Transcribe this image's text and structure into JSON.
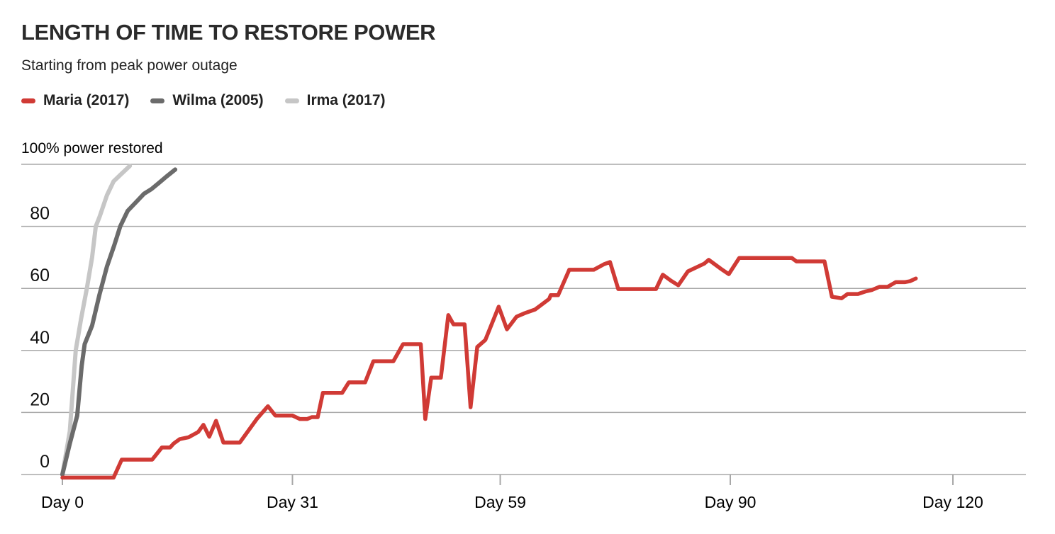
{
  "header": {
    "title": "LENGTH OF TIME TO RESTORE POWER",
    "subtitle": "Starting from peak power outage"
  },
  "legend": [
    {
      "label": "Maria (2017)",
      "color": "#d03a35"
    },
    {
      "label": "Wilma (2005)",
      "color": "#6b6b6b"
    },
    {
      "label": "Irma (2017)",
      "color": "#c6c6c6"
    }
  ],
  "colors": {
    "maria_red": "#d03a35",
    "wilma_dark_gray": "#6b6b6b",
    "irma_light_gray": "#c6c6c6",
    "gridline_gray": "#a8a8a8",
    "text_dark": "#111111"
  },
  "chart_data": {
    "type": "line",
    "title": "LENGTH OF TIME TO RESTORE POWER",
    "subtitle": "Starting from peak power outage",
    "y_top_label": "100% power restored",
    "y_top_gridline": 100,
    "y_ticks": [
      {
        "value": 0,
        "label": "0"
      },
      {
        "value": 20,
        "label": "20"
      },
      {
        "value": 40,
        "label": "40"
      },
      {
        "value": 60,
        "label": "60"
      },
      {
        "value": 80,
        "label": "80"
      }
    ],
    "x_ticks": [
      {
        "day": 0,
        "label": "Day 0"
      },
      {
        "day": 31,
        "label": "Day 31"
      },
      {
        "day": 59,
        "label": "Day 59"
      },
      {
        "day": 90,
        "label": "Day 90"
      },
      {
        "day": 120,
        "label": "Day 120"
      }
    ],
    "xlim": [
      0,
      130
    ],
    "ylim": [
      -5,
      105
    ],
    "grid": true,
    "legend_position": "top-left",
    "x_unit": "days since peak power outage",
    "y_unit": "% power restored",
    "series": [
      {
        "name": "Maria (2017)",
        "color": "#d03a35",
        "stroke_width": 5.5,
        "points": [
          [
            0,
            -1
          ],
          [
            6.9,
            -1
          ],
          [
            8,
            4.8
          ],
          [
            12.1,
            4.8
          ],
          [
            13.4,
            8.7
          ],
          [
            14.5,
            8.7
          ],
          [
            15,
            10
          ],
          [
            15.8,
            11.4
          ],
          [
            17,
            12
          ],
          [
            18.3,
            13.7
          ],
          [
            19,
            16
          ],
          [
            19.8,
            12.2
          ],
          [
            20.7,
            17.3
          ],
          [
            21.7,
            10.3
          ],
          [
            23.9,
            10.3
          ],
          [
            26.2,
            17.9
          ],
          [
            27.7,
            22
          ],
          [
            28.7,
            19
          ],
          [
            31,
            19
          ],
          [
            32,
            17.9
          ],
          [
            33,
            17.9
          ],
          [
            33.6,
            18.5
          ],
          [
            34.4,
            18.5
          ],
          [
            35.1,
            26.3
          ],
          [
            37.7,
            26.3
          ],
          [
            38.6,
            29.7
          ],
          [
            40.8,
            29.7
          ],
          [
            41.9,
            36.5
          ],
          [
            44.6,
            36.5
          ],
          [
            45.9,
            42
          ],
          [
            48.3,
            42
          ],
          [
            48.9,
            17.9
          ],
          [
            49.7,
            31.2
          ],
          [
            51,
            31.2
          ],
          [
            52,
            51.4
          ],
          [
            52.7,
            48.4
          ],
          [
            54.2,
            48.4
          ],
          [
            55,
            21.7
          ],
          [
            55.9,
            41.1
          ],
          [
            57,
            43.4
          ],
          [
            58.8,
            54.1
          ],
          [
            59.9,
            46.8
          ],
          [
            61.2,
            50.9
          ],
          [
            62.3,
            52
          ],
          [
            63.7,
            53.2
          ],
          [
            65.6,
            56.6
          ],
          [
            65.8,
            57.8
          ],
          [
            66.8,
            57.8
          ],
          [
            68.3,
            66
          ],
          [
            71.6,
            66
          ],
          [
            73,
            67.8
          ],
          [
            73.8,
            68.5
          ],
          [
            74.9,
            59.8
          ],
          [
            80,
            59.8
          ],
          [
            80.9,
            64.4
          ],
          [
            82,
            62.5
          ],
          [
            83,
            61
          ],
          [
            84.3,
            65.5
          ],
          [
            86.5,
            68
          ],
          [
            87.1,
            69.2
          ],
          [
            88.8,
            66.2
          ],
          [
            89.8,
            64.6
          ],
          [
            91.2,
            69.8
          ],
          [
            98.3,
            69.8
          ],
          [
            98.9,
            68.7
          ],
          [
            102.7,
            68.7
          ],
          [
            103.7,
            57.3
          ],
          [
            105,
            56.8
          ],
          [
            105.8,
            58.2
          ],
          [
            107.2,
            58.2
          ],
          [
            108.2,
            59
          ],
          [
            109.1,
            59.5
          ],
          [
            110.1,
            60.5
          ],
          [
            111.2,
            60.5
          ],
          [
            112.3,
            62
          ],
          [
            113.5,
            62
          ],
          [
            114.2,
            62.3
          ],
          [
            115,
            63.2
          ]
        ]
      },
      {
        "name": "Wilma (2005)",
        "color": "#6b6b6b",
        "stroke_width": 6,
        "points": [
          [
            0,
            0
          ],
          [
            1,
            10
          ],
          [
            2,
            19
          ],
          [
            2.6,
            35
          ],
          [
            3,
            42
          ],
          [
            4,
            48
          ],
          [
            5,
            58
          ],
          [
            6,
            67
          ],
          [
            7,
            74
          ],
          [
            7.8,
            80
          ],
          [
            8.8,
            85
          ],
          [
            10,
            88
          ],
          [
            11,
            90.5
          ],
          [
            12,
            92
          ],
          [
            13,
            94
          ],
          [
            14,
            96
          ],
          [
            15.2,
            98.3
          ]
        ]
      },
      {
        "name": "Irma (2017)",
        "color": "#c6c6c6",
        "stroke_width": 6,
        "points": [
          [
            0,
            0
          ],
          [
            1,
            14
          ],
          [
            1.8,
            40
          ],
          [
            2.5,
            50
          ],
          [
            3.3,
            60
          ],
          [
            4,
            70
          ],
          [
            4.5,
            80
          ],
          [
            5,
            83
          ],
          [
            6,
            90
          ],
          [
            6.9,
            94.5
          ],
          [
            8,
            97
          ],
          [
            9.1,
            99.5
          ]
        ]
      }
    ]
  }
}
